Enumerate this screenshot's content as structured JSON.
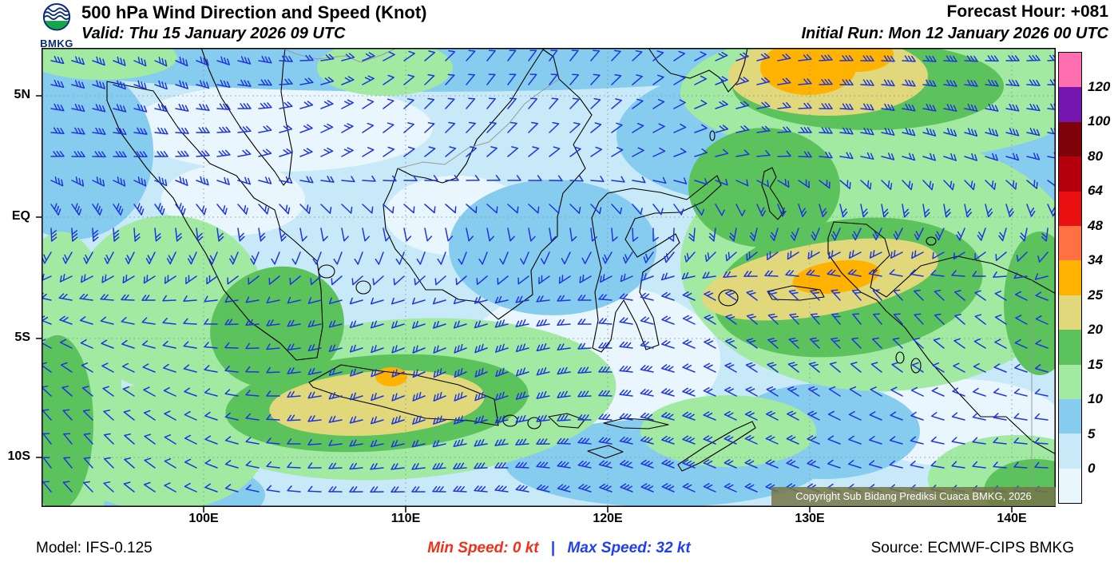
{
  "header": {
    "logo_text": "BMKG",
    "title": "500 hPa Wind Direction and Speed (Knot)",
    "valid_label": "Valid: Thu 15 January 2026 09 UTC",
    "forecast_hour_label": "Forecast Hour: +081",
    "initial_run_label": "Initial Run: Mon 12 January 2026 00 UTC"
  },
  "map": {
    "lat_ticks": [
      "5N",
      "EQ",
      "5S",
      "10S"
    ],
    "lon_ticks": [
      "100E",
      "110E",
      "120E",
      "130E",
      "140E"
    ],
    "copyright": "Copyright Sub Bidang Prediksi Cuaca BMKG, 2026",
    "barb_color": "#1f35e0",
    "coastline_color": "#000000",
    "country_border_color": "#9a9a9a",
    "grid_color": "#8b98a5"
  },
  "legend": {
    "values": [
      "120",
      "100",
      "80",
      "64",
      "48",
      "34",
      "25",
      "20",
      "15",
      "10",
      "5",
      "0"
    ],
    "colors": [
      "#ff6fb0",
      "#7516b0",
      "#7e0308",
      "#b3000c",
      "#e81010",
      "#ff7043",
      "#ffb300",
      "#e0d87a",
      "#5cc35c",
      "#a2e9a2",
      "#85ccee",
      "#c7e9f8",
      "#eaf6fd"
    ]
  },
  "footer": {
    "model_label": "Model: IFS-0.125",
    "min_speed_label": "Min Speed:  0 kt",
    "separator": "|",
    "max_speed_label": "Max Speed:  32 kt",
    "source_label": "Source: ECMWF-CIPS BMKG"
  }
}
